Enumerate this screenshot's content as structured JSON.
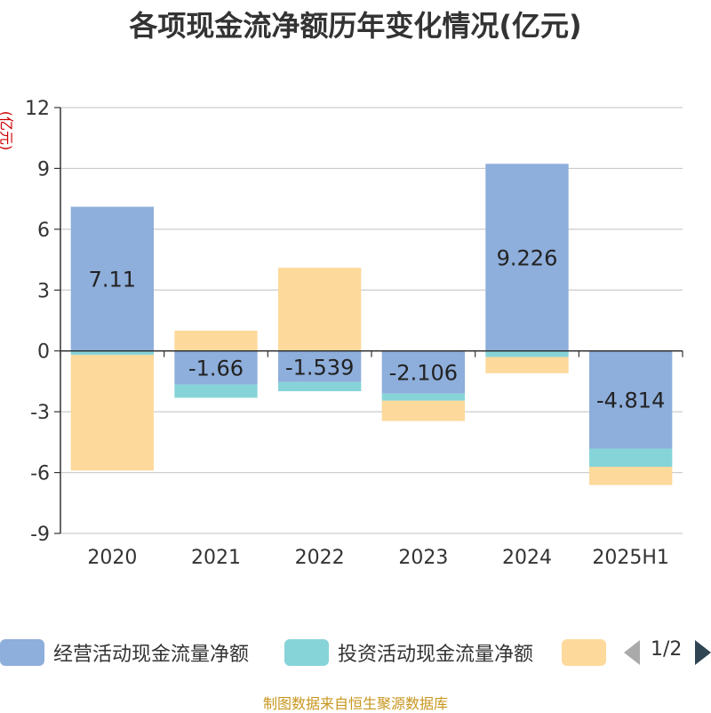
{
  "title": "各项现金流净额历年变化情况(亿元)",
  "unit_label": "(亿元)",
  "source": "制图数据来自恒生聚源数据库",
  "pager": {
    "text": "1/2"
  },
  "legend": [
    {
      "name": "经营活动现金流量净额",
      "color": "#8eaedb"
    },
    {
      "name": "投资活动现金流量净额",
      "color": "#86d4d8"
    },
    {
      "name": "",
      "color": "#fdd99b"
    }
  ],
  "chart_data": {
    "type": "bar",
    "stacked": true,
    "categories": [
      "2020",
      "2021",
      "2022",
      "2023",
      "2024",
      "2025H1"
    ],
    "ylim": [
      -9,
      12
    ],
    "yticks": [
      -9,
      -6,
      -3,
      0,
      3,
      6,
      9,
      12
    ],
    "grid": true,
    "legend_position": "bottom",
    "series": [
      {
        "name": "经营活动现金流量净额",
        "color": "#8eaedb",
        "values": [
          7.11,
          -1.66,
          -1.539,
          -2.106,
          9.226,
          -4.814
        ],
        "labels": [
          "7.11",
          "-1.66",
          "-1.539",
          "-2.106",
          "9.226",
          "-4.814"
        ]
      },
      {
        "name": "投资活动现金流量净额",
        "color": "#86d4d8",
        "values": [
          -0.2,
          -0.65,
          -0.45,
          -0.35,
          -0.3,
          -0.9
        ]
      },
      {
        "color": "#fdd99b",
        "values": [
          -5.7,
          1.0,
          4.1,
          -1.0,
          -0.8,
          -0.9
        ]
      }
    ]
  }
}
